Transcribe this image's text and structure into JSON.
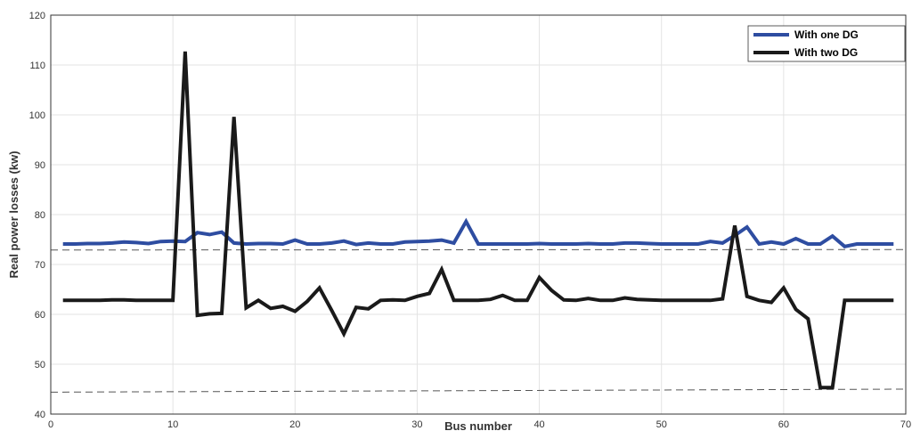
{
  "chart_data": {
    "type": "line",
    "xlabel": "Bus number",
    "ylabel": "Real power losses (kw)",
    "xlim": [
      0,
      70
    ],
    "ylim": [
      40,
      120
    ],
    "xticks": [
      0,
      10,
      20,
      30,
      40,
      50,
      60,
      70
    ],
    "yticks": [
      40,
      50,
      60,
      70,
      80,
      90,
      100,
      110,
      120
    ],
    "grid": true,
    "legend_position": "top-right",
    "x": [
      1,
      2,
      3,
      4,
      5,
      6,
      7,
      8,
      9,
      10,
      11,
      12,
      13,
      14,
      15,
      16,
      17,
      18,
      19,
      20,
      21,
      22,
      23,
      24,
      25,
      26,
      27,
      28,
      29,
      30,
      31,
      32,
      33,
      34,
      35,
      36,
      37,
      38,
      39,
      40,
      41,
      42,
      43,
      44,
      45,
      46,
      47,
      48,
      49,
      50,
      51,
      52,
      53,
      54,
      55,
      56,
      57,
      58,
      59,
      60,
      61,
      62,
      63,
      64,
      65,
      66,
      67,
      68,
      69
    ],
    "series": [
      {
        "name": "With one DG",
        "color": "#2E4DA1",
        "values": [
          74.1,
          74.1,
          74.2,
          74.2,
          74.3,
          74.5,
          74.4,
          74.2,
          74.6,
          74.7,
          74.6,
          76.4,
          76.0,
          76.5,
          74.3,
          74.1,
          74.2,
          74.2,
          74.1,
          74.9,
          74.1,
          74.1,
          74.3,
          74.7,
          74.0,
          74.3,
          74.1,
          74.1,
          74.5,
          74.6,
          74.7,
          74.9,
          74.3,
          78.6,
          74.1,
          74.1,
          74.1,
          74.1,
          74.1,
          74.2,
          74.1,
          74.1,
          74.1,
          74.2,
          74.1,
          74.1,
          74.3,
          74.3,
          74.2,
          74.1,
          74.1,
          74.1,
          74.1,
          74.6,
          74.3,
          75.8,
          77.5,
          74.1,
          74.5,
          74.1,
          75.2,
          74.1,
          74.1,
          75.7,
          73.6,
          74.1,
          74.1,
          74.1,
          74.1
        ]
      },
      {
        "name": "With two DG",
        "color": "#1A1A1A",
        "values": [
          62.8,
          62.8,
          62.8,
          62.8,
          62.9,
          62.9,
          62.8,
          62.8,
          62.8,
          62.8,
          112.7,
          59.8,
          60.1,
          60.2,
          99.6,
          61.3,
          62.8,
          61.2,
          61.6,
          60.6,
          62.6,
          65.3,
          60.8,
          56.1,
          61.4,
          61.1,
          62.8,
          62.9,
          62.8,
          63.6,
          64.2,
          69.0,
          62.8,
          62.8,
          62.8,
          63.0,
          63.8,
          62.8,
          62.8,
          67.4,
          64.8,
          62.9,
          62.8,
          63.2,
          62.8,
          62.8,
          63.3,
          63.0,
          62.9,
          62.8,
          62.8,
          62.8,
          62.8,
          62.8,
          63.1,
          77.8,
          63.6,
          62.8,
          62.4,
          65.3,
          61.0,
          59.1,
          45.3,
          45.3,
          62.8,
          62.8,
          62.8,
          62.8,
          62.8
        ]
      }
    ],
    "reference_lines": [
      {
        "y_start": 72.9,
        "y_end": 73.0,
        "style": "dashed",
        "color": "#555555"
      },
      {
        "y_start": 44.4,
        "y_end": 45.0,
        "style": "dashed",
        "color": "#555555"
      }
    ]
  }
}
